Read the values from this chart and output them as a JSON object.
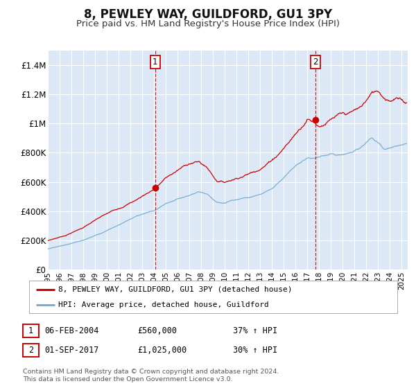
{
  "title": "8, PEWLEY WAY, GUILDFORD, GU1 3PY",
  "subtitle": "Price paid vs. HM Land Registry's House Price Index (HPI)",
  "title_fontsize": 12,
  "subtitle_fontsize": 9.5,
  "background_color": "#ffffff",
  "plot_bg_color": "#dce8f5",
  "grid_color": "#ffffff",
  "red_line_color": "#cc0000",
  "blue_line_color": "#7aafd4",
  "ylim": [
    0,
    1500000
  ],
  "yticks": [
    0,
    200000,
    400000,
    600000,
    800000,
    1000000,
    1200000,
    1400000
  ],
  "ytick_labels": [
    "£0",
    "£200K",
    "£400K",
    "£600K",
    "£800K",
    "£1M",
    "£1.2M",
    "£1.4M"
  ],
  "xstart": 1995.0,
  "xend": 2025.5,
  "xtick_years": [
    1995,
    1996,
    1997,
    1998,
    1999,
    2000,
    2001,
    2002,
    2003,
    2004,
    2005,
    2006,
    2007,
    2008,
    2009,
    2010,
    2011,
    2012,
    2013,
    2014,
    2015,
    2016,
    2017,
    2018,
    2019,
    2020,
    2021,
    2022,
    2023,
    2024,
    2025
  ],
  "marker1_x": 2004.1,
  "marker1_y": 560000,
  "marker2_x": 2017.67,
  "marker2_y": 1025000,
  "vline1_x": 2004.1,
  "vline2_x": 2017.67,
  "legend_label_red": "8, PEWLEY WAY, GUILDFORD, GU1 3PY (detached house)",
  "legend_label_blue": "HPI: Average price, detached house, Guildford",
  "table_row1": [
    "1",
    "06-FEB-2004",
    "£560,000",
    "37% ↑ HPI"
  ],
  "table_row2": [
    "2",
    "01-SEP-2017",
    "£1,025,000",
    "30% ↑ HPI"
  ],
  "footnote1": "Contains HM Land Registry data © Crown copyright and database right 2024.",
  "footnote2": "This data is licensed under the Open Government Licence v3.0."
}
